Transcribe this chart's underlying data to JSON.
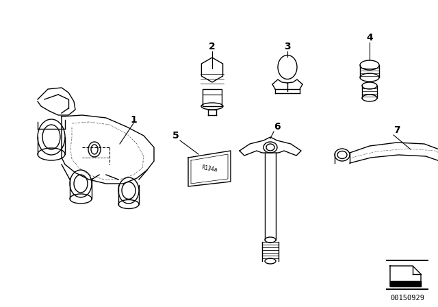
{
  "background_color": "#ffffff",
  "diagram_id": "00150929",
  "line_color": "#000000",
  "label_fontsize": 10,
  "id_fontsize": 7.5,
  "figsize": [
    6.4,
    4.48
  ],
  "dpi": 100
}
